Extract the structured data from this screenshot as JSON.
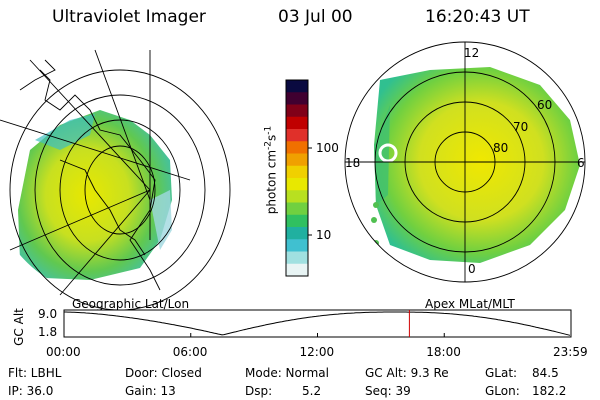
{
  "header": {
    "instrument": "Ultraviolet Imager",
    "date": "03 Jul 00",
    "time": "16:20:43 UT"
  },
  "left_panel": {
    "caption": "Geographic Lat/Lon"
  },
  "right_panel": {
    "caption": "Apex MLat/MLT",
    "mlt_labels": [
      "12",
      "18",
      "6",
      "0"
    ],
    "lat_labels": [
      "60",
      "70",
      "80"
    ]
  },
  "colorbar": {
    "unit_label": "photon cm",
    "unit_exp1": "-2",
    "unit_s": "s",
    "unit_exp2": "-1",
    "ticks": [
      "100",
      "10"
    ],
    "colors": [
      "#0a0a40",
      "#400030",
      "#800018",
      "#c00000",
      "#e0302a",
      "#f07000",
      "#f0a000",
      "#f0d000",
      "#e8e800",
      "#b8e020",
      "#70d040",
      "#30c060",
      "#20b0a0",
      "#40c0d0",
      "#a0e0e0",
      "#e8f4f4"
    ]
  },
  "timeline": {
    "ylabel": "GC Alt",
    "yticks": [
      "9.0",
      "1.8"
    ],
    "xticks": [
      "00:00",
      "06:00",
      "12:00",
      "18:00",
      "23:59"
    ],
    "marker_hour": 16.35
  },
  "status": {
    "row1": {
      "flt": "Flt: LBHL",
      "door": "Door: Closed",
      "mode": "Mode: Normal",
      "gcalt": "GC Alt: 9.3 Re",
      "glat_label": "GLat:",
      "glat_value": "84.5"
    },
    "row2": {
      "ip": "IP: 36.0",
      "gain": "Gain: 13",
      "dsp_label": "Dsp:",
      "dsp_value": "5.2",
      "seq": "Seq: 39",
      "glon_label": "GLon:",
      "glon_value": "182.2"
    }
  }
}
